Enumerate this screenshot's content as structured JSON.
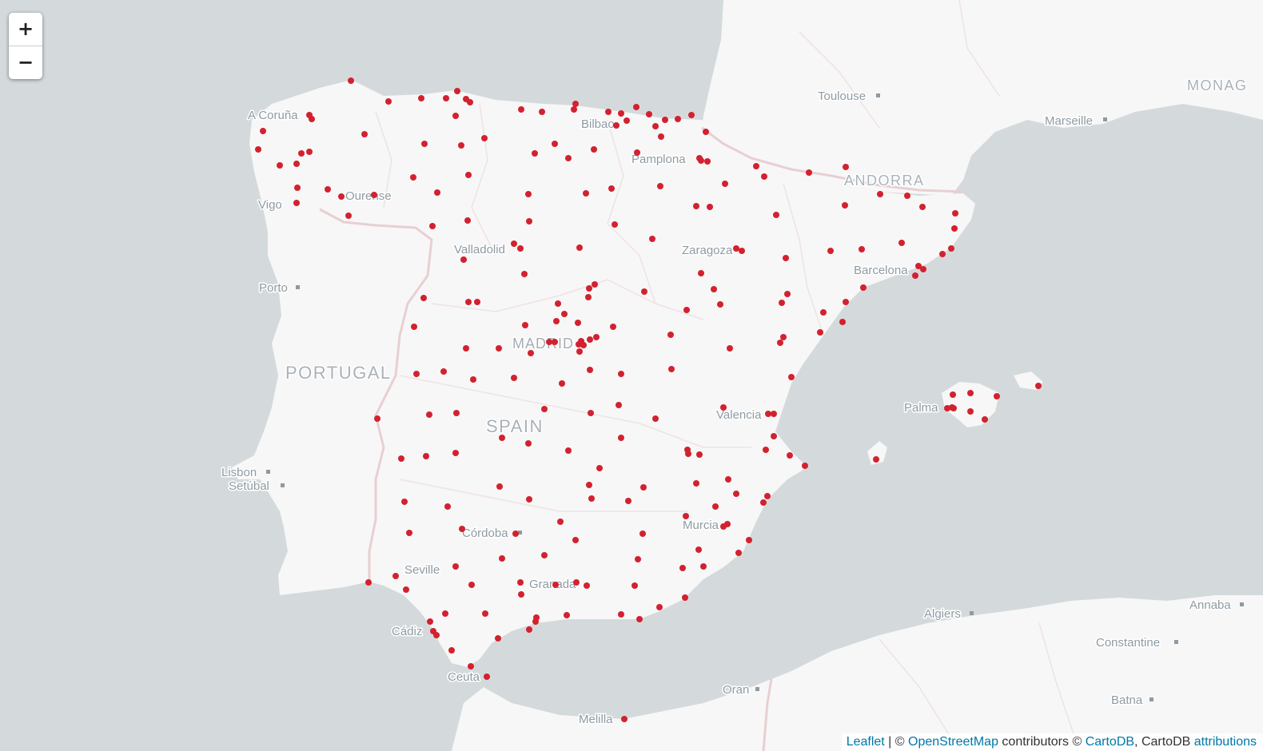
{
  "map": {
    "zoom_in_label": "+",
    "zoom_out_label": "−",
    "marker_color": "#d3212f",
    "land_color": "#f7f7f7",
    "sea_color": "#d4dadc",
    "border_color": "#e8cfd2",
    "markers": "multiple red point markers over Spain (~260 locations)",
    "labels": {
      "countries": [
        {
          "id": "spain",
          "text": "SPAIN"
        },
        {
          "id": "portugal",
          "text": "PORTUGAL"
        },
        {
          "id": "andorra",
          "text": "ANDORRA"
        },
        {
          "id": "monaco",
          "text": "MONAG"
        }
      ],
      "capitals": [
        {
          "id": "madrid",
          "text": "MADRID"
        }
      ],
      "cities": [
        {
          "id": "a-coruna",
          "text": "A Coruña"
        },
        {
          "id": "vigo",
          "text": "Vigo"
        },
        {
          "id": "ourense",
          "text": "Ourense"
        },
        {
          "id": "porto",
          "text": "Porto"
        },
        {
          "id": "lisbon",
          "text": "Lisbon"
        },
        {
          "id": "setubal",
          "text": "Setúbal"
        },
        {
          "id": "bilbao",
          "text": "Bilbao"
        },
        {
          "id": "pamplona",
          "text": "Pamplona"
        },
        {
          "id": "valladolid",
          "text": "Valladolid"
        },
        {
          "id": "zaragoza",
          "text": "Zaragoza"
        },
        {
          "id": "barcelona",
          "text": "Barcelona"
        },
        {
          "id": "toulouse",
          "text": "Toulouse"
        },
        {
          "id": "marseille",
          "text": "Marseille"
        },
        {
          "id": "valencia",
          "text": "Valencia"
        },
        {
          "id": "palma",
          "text": "Palma"
        },
        {
          "id": "murcia",
          "text": "Murcia"
        },
        {
          "id": "cordoba",
          "text": "Córdoba"
        },
        {
          "id": "seville",
          "text": "Seville"
        },
        {
          "id": "granada",
          "text": "Granada"
        },
        {
          "id": "cadiz",
          "text": "Cádiz"
        },
        {
          "id": "ceuta",
          "text": "Ceuta"
        },
        {
          "id": "melilla",
          "text": "Melilla"
        },
        {
          "id": "oran",
          "text": "Oran"
        },
        {
          "id": "algiers",
          "text": "Algiers"
        },
        {
          "id": "constantine",
          "text": "Constantine"
        },
        {
          "id": "annaba",
          "text": "Annaba"
        },
        {
          "id": "batna",
          "text": "Batna"
        }
      ]
    }
  },
  "attribution": {
    "leaflet": "Leaflet",
    "sep1": " | © ",
    "osm": "OpenStreetMap",
    "contributors": " contributors © ",
    "cartodb": "CartoDB",
    "comma": ", CartoDB ",
    "attributions": "attributions"
  }
}
